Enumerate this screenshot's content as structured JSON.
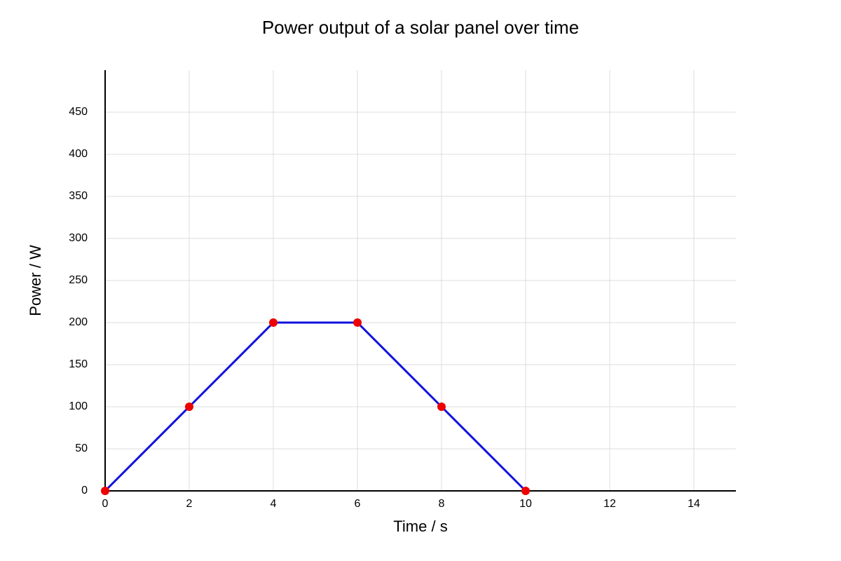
{
  "chart_data": {
    "type": "line",
    "title": "Power output of a solar panel over time",
    "x_label": "Time / s",
    "y_label": "Power / W",
    "x": [
      0,
      2,
      4,
      6,
      8,
      10
    ],
    "values": [
      0,
      100,
      200,
      200,
      100,
      0
    ],
    "color": "#1010dd",
    "marker_color": "#ee0000",
    "xlim": [
      0,
      15
    ],
    "xticks": [
      0,
      2,
      4,
      6,
      8,
      10,
      12,
      14
    ],
    "ylim": [
      0,
      500
    ],
    "yticks": [
      0,
      50,
      100,
      150,
      200,
      250,
      300,
      350,
      400,
      450
    ],
    "grid": true
  }
}
